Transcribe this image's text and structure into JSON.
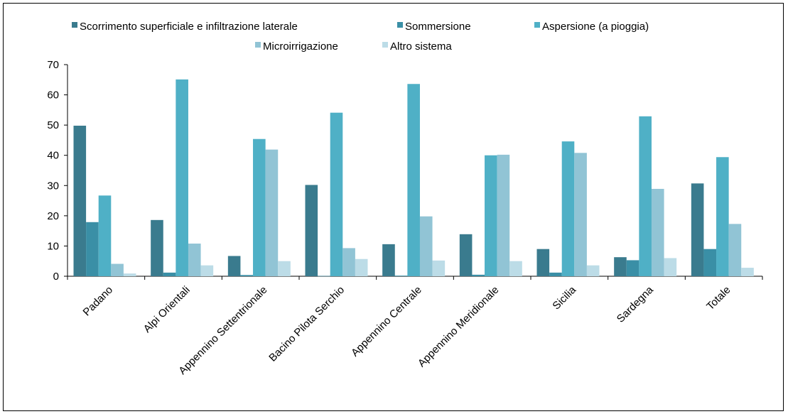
{
  "chart_data": {
    "type": "bar",
    "categories": [
      "Padano",
      "Alpi Orientali",
      "Appennino Settentrionale",
      "Bacino Pilota Serchio",
      "Appennino  Centrale",
      "Appennino Meridionale",
      "Sicilia",
      "Sardegna",
      "Totale"
    ],
    "series": [
      {
        "name": "Scorrimento superficiale e infiltrazione laterale",
        "color": "#3a7b8e",
        "values": [
          49.8,
          18.6,
          6.7,
          30.2,
          10.6,
          13.9,
          9.0,
          6.3,
          30.7
        ]
      },
      {
        "name": "Sommersione",
        "color": "#3a8fa6",
        "values": [
          17.9,
          1.2,
          0.4,
          0.1,
          0.2,
          0.5,
          1.2,
          5.3,
          9.0
        ]
      },
      {
        "name": "Aspersione (a pioggia)",
        "color": "#4fb0c6",
        "values": [
          26.7,
          65.1,
          45.4,
          54.1,
          63.6,
          40.0,
          44.6,
          52.9,
          39.4
        ]
      },
      {
        "name": "Microirrigazione",
        "color": "#91c4d5",
        "values": [
          4.1,
          10.8,
          41.9,
          9.3,
          19.8,
          40.2,
          40.8,
          28.9,
          17.3
        ]
      },
      {
        "name": "Altro sistema",
        "color": "#bcdce7",
        "values": [
          0.9,
          3.6,
          5.0,
          5.7,
          5.2,
          5.0,
          3.6,
          6.0,
          2.8
        ]
      }
    ],
    "ylim": [
      0,
      70
    ],
    "yticks": [
      0,
      10,
      20,
      30,
      40,
      50,
      60,
      70
    ],
    "title": "",
    "xlabel": "",
    "ylabel": "",
    "grid": false,
    "legend_position": "top"
  }
}
